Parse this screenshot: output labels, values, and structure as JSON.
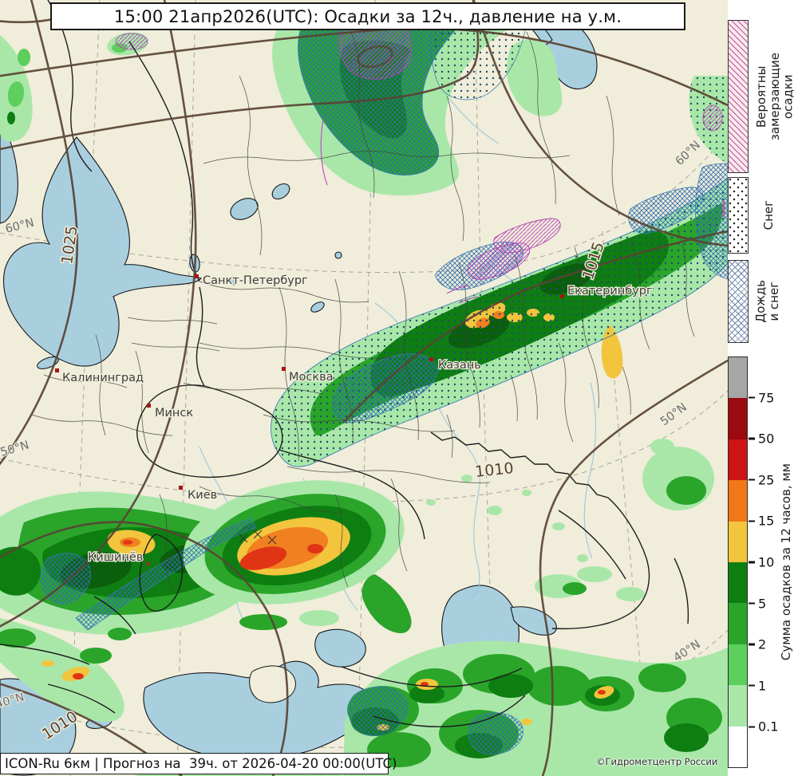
{
  "title": "15:00 21апр2026(UTC): Осадки за 12ч., давление на у.м.",
  "footer": {
    "model_info": "ICON-Ru 6км | Прогноз на  39ч. от 2026-04-20 00:00(UTC)",
    "copyright": "©Гидрометцентр России"
  },
  "legend": {
    "freezing_label": "Вероятны\nзамерзающие\nосадки",
    "snow_label": "Снег",
    "rain_snow_label": "Дождь\nи снег",
    "colorbar": {
      "title": "Сумма осадков за 12 часов, мм",
      "ticks": [
        "75",
        "50",
        "25",
        "15",
        "10",
        "5",
        "2",
        "1",
        "0.1"
      ],
      "segment_colors": [
        "#a6a6a6",
        "#9b0a10",
        "#cc1414",
        "#f07818",
        "#f2c53d",
        "#0e7e12",
        "#2aa52a",
        "#5ccf5c",
        "#a9e7a9",
        "#ffffff"
      ]
    }
  },
  "map": {
    "cities": [
      {
        "name": "Санкт-Петербург"
      },
      {
        "name": "Калининград"
      },
      {
        "name": "Минск"
      },
      {
        "name": "Москва"
      },
      {
        "name": "Казань"
      },
      {
        "name": "Екатеринбург"
      },
      {
        "name": "Киев"
      },
      {
        "name": "Кишинёв"
      }
    ],
    "isobar_labels": [
      {
        "value": "1025"
      },
      {
        "value": "1015"
      },
      {
        "value": "1010"
      },
      {
        "value": "1010"
      }
    ],
    "graticule_labels": [
      {
        "value": "60°N"
      },
      {
        "value": "50°N"
      },
      {
        "value": "40°N"
      },
      {
        "value": "60°N"
      },
      {
        "value": "50°N"
      },
      {
        "value": "40°N"
      }
    ],
    "colors": {
      "land": "#f0edda",
      "water": "#a9cfdf",
      "isobar": "#5a4334",
      "freezing_hatch": "#c050c0",
      "rain_snow_hatch": "#2f6fae",
      "snow_dot": "#1d4f66",
      "precip_levels_mm": [
        "0.1",
        "1",
        "2",
        "5",
        "10",
        "15",
        "25",
        "50",
        "75"
      ],
      "precip_fill": [
        "#a9e7a9",
        "#5ccf5c",
        "#2aa52a",
        "#0e7e12",
        "#f2c53d",
        "#f07818",
        "#e03515",
        "#9b0a10",
        "#a6a6a6"
      ]
    }
  }
}
